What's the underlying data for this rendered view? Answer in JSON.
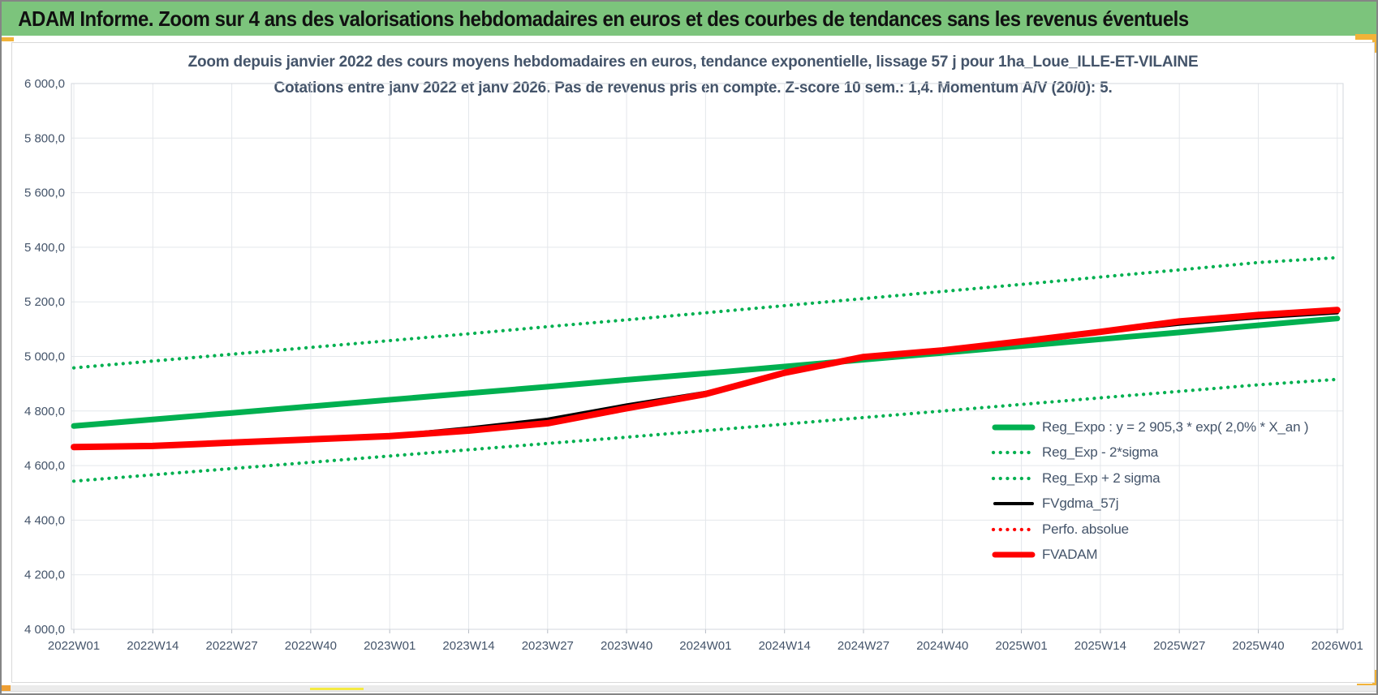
{
  "header": {
    "title": "ADAM Informe. Zoom sur 4 ans des valorisations hebdomadaires en euros et des courbes de tendances sans les revenus éventuels",
    "background": "#7cc47c",
    "text_color": "#111111"
  },
  "accents": {
    "selection_handle_color": "#f2b339",
    "scroll_mark_orange": "#ee9f34",
    "scroll_underline_yellow": "#f4ea43",
    "scrollbar_track": "#ebebeb"
  },
  "chart_data": {
    "type": "line",
    "title_line1": "Zoom depuis janvier 2022 des cours moyens hebdomadaires en euros, tendance exponentielle, lissage 57 j pour 1ha_Loue_ILLE-ET-VILAINE",
    "title_line2": "Cotations entre janv 2022 et janv 2026. Pas de revenus pris en compte. Z-score 10 sem.: 1,4. Momentum A/V (20/0): 5.",
    "categories": [
      "2022W01",
      "2022W14",
      "2022W27",
      "2022W40",
      "2023W01",
      "2023W14",
      "2023W27",
      "2023W40",
      "2024W01",
      "2024W14",
      "2024W27",
      "2024W40",
      "2025W01",
      "2025W14",
      "2025W27",
      "2025W40",
      "2026W01"
    ],
    "ylim": [
      4000,
      6000
    ],
    "y_ticks": {
      "labels": [
        "6 000,0",
        "5 800,0",
        "5 600,0",
        "5 400,0",
        "5 200,0",
        "5 000,0",
        "4 800,0",
        "4 600,0",
        "4 400,0",
        "4 200,0",
        "4 000,0"
      ],
      "values": [
        6000,
        5800,
        5600,
        5400,
        5200,
        5000,
        4800,
        4600,
        4400,
        4200,
        4000
      ]
    },
    "grid": true,
    "legend_position": "inside-right",
    "series": [
      {
        "name": "Reg_Expo : y = 2 905,3 * exp( 2,0% *  X_an )",
        "color": "#00b050",
        "style": "solid",
        "width": 7,
        "values": [
          4745,
          4769,
          4793,
          4817,
          4841,
          4865,
          4889,
          4914,
          4938,
          4963,
          4988,
          5013,
          5038,
          5063,
          5088,
          5114,
          5139
        ]
      },
      {
        "name": "Reg_Exp - 2*sigma",
        "color": "#00b050",
        "style": "dotted",
        "width": 4.2,
        "values": [
          4543,
          4566,
          4589,
          4612,
          4635,
          4658,
          4681,
          4704,
          4728,
          4752,
          4776,
          4800,
          4824,
          4848,
          4872,
          4896,
          4916
        ]
      },
      {
        "name": "Reg_Exp + 2 sigma",
        "color": "#00b050",
        "style": "dotted",
        "width": 4.2,
        "values": [
          4958,
          4983,
          5008,
          5033,
          5058,
          5083,
          5109,
          5134,
          5160,
          5186,
          5212,
          5238,
          5264,
          5291,
          5317,
          5344,
          5362
        ]
      },
      {
        "name": "FVgdma_57j",
        "color": "#000000",
        "style": "solid",
        "width": 4,
        "values": [
          4668,
          4672,
          4684,
          4696,
          4710,
          4738,
          4770,
          4822,
          4868,
          4940,
          4997,
          5022,
          5055,
          5088,
          5118,
          5142,
          5160
        ]
      },
      {
        "name": "Perfo. absolue",
        "color": "#ff0000",
        "style": "dotted",
        "width": 4.2,
        "values": [
          4668,
          4672,
          4684,
          4696,
          4708,
          4728,
          4755,
          4810,
          4862,
          4940,
          4998,
          5022,
          5055,
          5090,
          5128,
          5152,
          5170
        ]
      },
      {
        "name": "FVADAM",
        "color": "#ff0000",
        "style": "solid",
        "width": 8,
        "values": [
          4668,
          4672,
          4684,
          4696,
          4708,
          4728,
          4755,
          4810,
          4862,
          4940,
          4998,
          5022,
          5055,
          5090,
          5128,
          5152,
          5170
        ]
      }
    ],
    "draw_order": [
      2,
      1,
      0,
      3,
      4,
      5
    ],
    "colors": {
      "gridline": "#e4e7eb",
      "plot_border": "#d3d7dc",
      "axis_tick": "#b7bcc4",
      "text": "#44546a"
    }
  }
}
